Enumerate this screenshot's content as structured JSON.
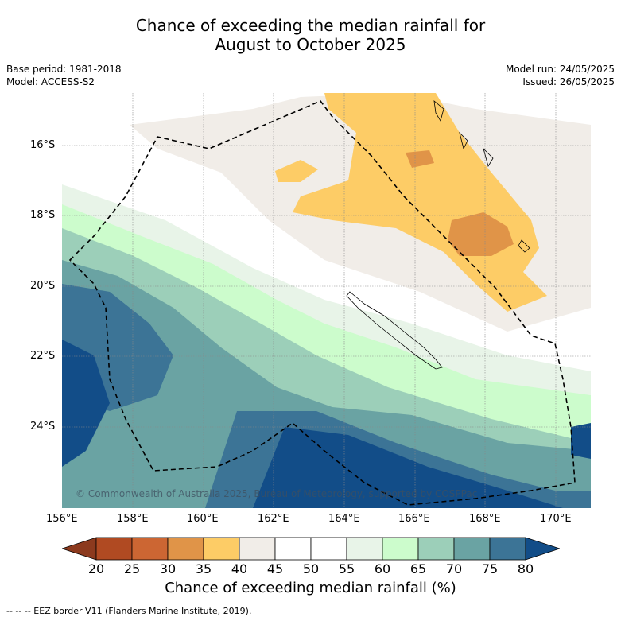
{
  "title_line1": "Chance of exceeding the median rainfall for",
  "title_line2": "August to October 2025",
  "base_period": "Base period: 1981-2018",
  "model": "Model: ACCESS-S2",
  "model_run": "Model run: 24/05/2025",
  "issued": "Issued: 26/05/2025",
  "lat_labels": [
    "16°S",
    "18°S",
    "20°S",
    "22°S",
    "24°S"
  ],
  "lon_labels": [
    "156°E",
    "158°E",
    "160°E",
    "162°E",
    "164°E",
    "166°E",
    "168°E",
    "170°E"
  ],
  "copyright": "© Commonwealth of Australia 2025, Bureau of Meteorology, supported by COSPPac",
  "colorbar": {
    "title": "Chance of exceeding median rainfall (%)",
    "ticks": [
      "20",
      "25",
      "30",
      "35",
      "40",
      "45",
      "50",
      "55",
      "60",
      "65",
      "70",
      "75",
      "80"
    ],
    "colors": [
      "#8c3a1e",
      "#b04a22",
      "#cc6633",
      "#e09448",
      "#fdcc66",
      "#f1ede8",
      "#ffffff",
      "#ffffff",
      "#e8f4e8",
      "#ccfccc",
      "#9ccfb9",
      "#6aa3a3",
      "#3c7496",
      "#124d88"
    ]
  },
  "footer": "--  --  -- EEZ border V11 (Flanders Marine Institute, 2019)."
}
